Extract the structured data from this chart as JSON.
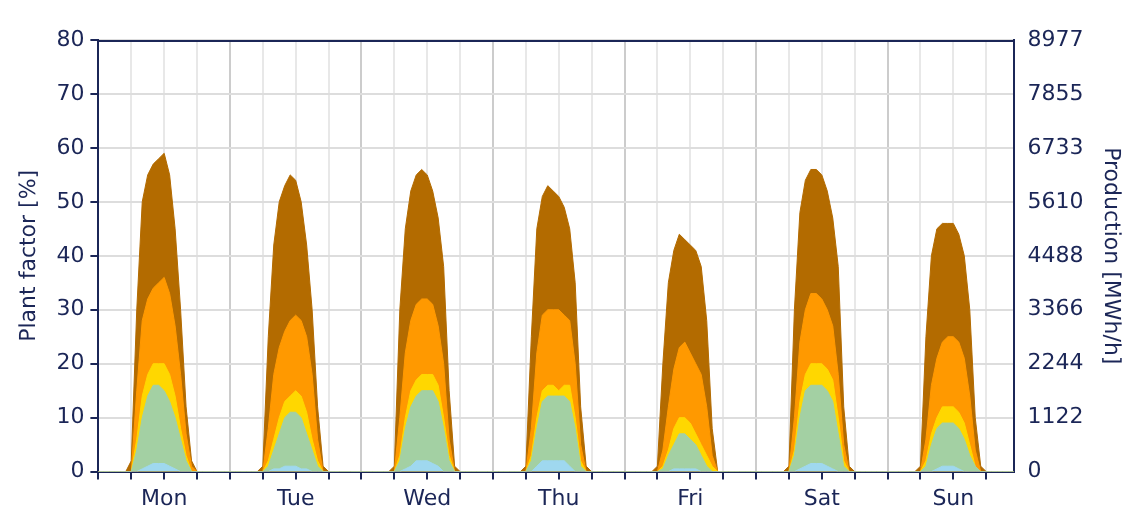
{
  "chart_data": {
    "type": "area",
    "ylabel": "Plant factor [%]",
    "y2label": "Production [MWh/h]",
    "categories": [
      null,
      null,
      null,
      null,
      null,
      null,
      null,
      null,
      null,
      null,
      null,
      null,
      "Mon",
      null,
      null,
      null,
      null,
      null,
      null,
      null,
      null,
      null,
      null,
      null,
      null,
      null,
      null,
      null,
      null,
      null,
      null,
      null,
      null,
      null,
      null,
      null,
      "Tue",
      null,
      null,
      null,
      null,
      null,
      null,
      null,
      null,
      null,
      null,
      null,
      null,
      null,
      null,
      null,
      null,
      null,
      null,
      null,
      null,
      null,
      null,
      null,
      "Wed",
      null,
      null,
      null,
      null,
      null,
      null,
      null,
      null,
      null,
      null,
      null,
      null,
      null,
      null,
      null,
      null,
      null,
      null,
      null,
      null,
      null,
      null,
      null,
      "Thu",
      null,
      null,
      null,
      null,
      null,
      null,
      null,
      null,
      null,
      null,
      null,
      null,
      null,
      null,
      null,
      null,
      null,
      null,
      null,
      null,
      null,
      null,
      null,
      "Fri",
      null,
      null,
      null,
      null,
      null,
      null,
      null,
      null,
      null,
      null,
      null,
      null,
      null,
      null,
      null,
      null,
      null,
      null,
      null,
      null,
      null,
      null,
      null,
      "Sat",
      null,
      null,
      null,
      null,
      null,
      null,
      null,
      null,
      null,
      null,
      null,
      null,
      null,
      null,
      null,
      null,
      null,
      null,
      null,
      null,
      null,
      null,
      null,
      "Sun",
      null,
      null,
      null,
      null,
      null,
      null,
      null,
      null,
      null,
      null,
      null
    ],
    "ylim": [
      0,
      80
    ],
    "yticks": [
      0,
      10,
      20,
      30,
      40,
      50,
      60,
      70,
      80
    ],
    "y2lim": [
      0,
      8977
    ],
    "y2ticks": [
      0,
      1122,
      2244,
      3366,
      4488,
      5610,
      6733,
      7855,
      8977
    ],
    "grid": true,
    "legend": false,
    "marker": "none",
    "series": [
      {
        "color": "#b36b00",
        "values": [
          0,
          0,
          0,
          0,
          0,
          0,
          2,
          30,
          50,
          55,
          57,
          58,
          59,
          55,
          45,
          30,
          12,
          2,
          0,
          0,
          0,
          0,
          0,
          0,
          0,
          0,
          0,
          0,
          0,
          0,
          1,
          25,
          42,
          50,
          53,
          55,
          54,
          50,
          42,
          30,
          12,
          1,
          0,
          0,
          0,
          0,
          0,
          0,
          0,
          0,
          0,
          0,
          0,
          0,
          1,
          30,
          45,
          52,
          55,
          56,
          55,
          52,
          47,
          38,
          15,
          1,
          0,
          0,
          0,
          0,
          0,
          0,
          0,
          0,
          0,
          0,
          0,
          0,
          1,
          25,
          45,
          51,
          53,
          52,
          51,
          49,
          45,
          35,
          12,
          1,
          0,
          0,
          0,
          0,
          0,
          0,
          0,
          0,
          0,
          0,
          0,
          0,
          1,
          20,
          35,
          41,
          44,
          43,
          42,
          41,
          38,
          28,
          8,
          0,
          0,
          0,
          0,
          0,
          0,
          0,
          0,
          0,
          0,
          0,
          0,
          0,
          1,
          30,
          48,
          54,
          56,
          56,
          55,
          52,
          47,
          38,
          12,
          1,
          0,
          0,
          0,
          0,
          0,
          0,
          0,
          0,
          0,
          0,
          0,
          0,
          1,
          25,
          40,
          45,
          46,
          46,
          46,
          44,
          40,
          30,
          10,
          1,
          0,
          0,
          0,
          0,
          0,
          0
        ]
      },
      {
        "color": "#ff9900",
        "values": [
          0,
          0,
          0,
          0,
          0,
          0,
          0,
          15,
          28,
          32,
          34,
          35,
          36,
          33,
          27,
          18,
          7,
          1,
          0,
          0,
          0,
          0,
          0,
          0,
          0,
          0,
          0,
          0,
          0,
          0,
          0,
          8,
          18,
          23,
          26,
          28,
          29,
          28,
          25,
          18,
          6,
          0,
          0,
          0,
          0,
          0,
          0,
          0,
          0,
          0,
          0,
          0,
          0,
          0,
          0,
          10,
          22,
          28,
          31,
          32,
          32,
          31,
          27,
          20,
          6,
          0,
          0,
          0,
          0,
          0,
          0,
          0,
          0,
          0,
          0,
          0,
          0,
          0,
          0,
          8,
          22,
          29,
          30,
          30,
          30,
          29,
          28,
          20,
          5,
          0,
          0,
          0,
          0,
          0,
          0,
          0,
          0,
          0,
          0,
          0,
          0,
          0,
          0,
          4,
          12,
          19,
          23,
          24,
          22,
          20,
          18,
          12,
          3,
          0,
          0,
          0,
          0,
          0,
          0,
          0,
          0,
          0,
          0,
          0,
          0,
          0,
          0,
          10,
          24,
          30,
          33,
          33,
          32,
          30,
          27,
          18,
          5,
          0,
          0,
          0,
          0,
          0,
          0,
          0,
          0,
          0,
          0,
          0,
          0,
          0,
          0,
          6,
          16,
          21,
          24,
          25,
          25,
          24,
          21,
          14,
          4,
          0,
          0,
          0,
          0,
          0,
          0,
          0
        ]
      },
      {
        "color": "#ffd700",
        "values": [
          0,
          0,
          0,
          0,
          0,
          0,
          0,
          6,
          14,
          18,
          20,
          20,
          20,
          18,
          14,
          8,
          3,
          0,
          0,
          0,
          0,
          0,
          0,
          0,
          0,
          0,
          0,
          0,
          0,
          0,
          0,
          2,
          6,
          10,
          13,
          14,
          15,
          14,
          11,
          6,
          2,
          0,
          0,
          0,
          0,
          0,
          0,
          0,
          0,
          0,
          0,
          0,
          0,
          0,
          0,
          3,
          10,
          15,
          17,
          18,
          18,
          18,
          16,
          10,
          3,
          0,
          0,
          0,
          0,
          0,
          0,
          0,
          0,
          0,
          0,
          0,
          0,
          0,
          0,
          3,
          10,
          15,
          16,
          16,
          15,
          16,
          16,
          10,
          2,
          0,
          0,
          0,
          0,
          0,
          0,
          0,
          0,
          0,
          0,
          0,
          0,
          0,
          0,
          1,
          4,
          8,
          10,
          10,
          9,
          7,
          5,
          3,
          1,
          0,
          0,
          0,
          0,
          0,
          0,
          0,
          0,
          0,
          0,
          0,
          0,
          0,
          0,
          4,
          13,
          18,
          20,
          20,
          20,
          19,
          17,
          10,
          2,
          0,
          0,
          0,
          0,
          0,
          0,
          0,
          0,
          0,
          0,
          0,
          0,
          0,
          0,
          2,
          7,
          10,
          12,
          12,
          12,
          11,
          9,
          5,
          1,
          0,
          0,
          0,
          0,
          0,
          0,
          0
        ]
      },
      {
        "color": "#a3d0a3",
        "values": [
          0,
          0,
          0,
          0,
          0,
          0,
          0,
          4,
          10,
          14,
          16,
          16,
          15,
          13,
          10,
          6,
          2,
          0,
          0,
          0,
          0,
          0,
          0,
          0,
          0,
          0,
          0,
          0,
          0,
          0,
          0,
          1,
          4,
          7,
          10,
          11,
          11,
          10,
          7,
          4,
          1,
          0,
          0,
          0,
          0,
          0,
          0,
          0,
          0,
          0,
          0,
          0,
          0,
          0,
          0,
          2,
          8,
          12,
          14,
          15,
          15,
          15,
          13,
          8,
          2,
          0,
          0,
          0,
          0,
          0,
          0,
          0,
          0,
          0,
          0,
          0,
          0,
          0,
          0,
          2,
          8,
          13,
          14,
          14,
          14,
          14,
          13,
          8,
          1,
          0,
          0,
          0,
          0,
          0,
          0,
          0,
          0,
          0,
          0,
          0,
          0,
          0,
          0,
          0.5,
          3,
          5,
          7,
          7,
          6,
          5,
          3,
          1,
          0,
          0,
          0,
          0,
          0,
          0,
          0,
          0,
          0,
          0,
          0,
          0,
          0,
          0,
          0,
          3,
          10,
          15,
          16,
          16,
          16,
          15,
          13,
          7,
          1,
          0,
          0,
          0,
          0,
          0,
          0,
          0,
          0,
          0,
          0,
          0,
          0,
          0,
          0,
          1,
          5,
          8,
          9,
          9,
          9,
          8,
          6,
          3,
          1,
          0,
          0,
          0,
          0,
          0,
          0,
          0
        ]
      },
      {
        "color": "#9fd8ef",
        "values": [
          0,
          0,
          0,
          0,
          0,
          0,
          0,
          0,
          0.5,
          1,
          1.5,
          1.5,
          1.5,
          1,
          0.5,
          0,
          0,
          0,
          0,
          0,
          0,
          0,
          0,
          0,
          0,
          0,
          0,
          0,
          0,
          0,
          0,
          0,
          0.5,
          0.5,
          1,
          1,
          1,
          0.5,
          0.5,
          0,
          0,
          0,
          0,
          0,
          0,
          0,
          0,
          0,
          0,
          0,
          0,
          0,
          0,
          0,
          0,
          0,
          0.5,
          1,
          2,
          2,
          2,
          1.5,
          1,
          0,
          0,
          0,
          0,
          0,
          0,
          0,
          0,
          0,
          0,
          0,
          0,
          0,
          0,
          0,
          0,
          0,
          1,
          2,
          2,
          2,
          2,
          2,
          1,
          0,
          0,
          0,
          0,
          0,
          0,
          0,
          0,
          0,
          0,
          0,
          0,
          0,
          0,
          0,
          0,
          0,
          0,
          0.5,
          0.5,
          0.5,
          0.5,
          0.5,
          0,
          0,
          0,
          0,
          0,
          0,
          0,
          0,
          0,
          0,
          0,
          0,
          0,
          0,
          0,
          0,
          0,
          0,
          0.5,
          1,
          1.5,
          1.5,
          1.5,
          1,
          0.5,
          0,
          0,
          0,
          0,
          0,
          0,
          0,
          0,
          0,
          0,
          0,
          0,
          0,
          0,
          0,
          0,
          0,
          0,
          0.5,
          1,
          1,
          1,
          0.5,
          0,
          0,
          0,
          0,
          0,
          0,
          0,
          0,
          0,
          0
        ]
      }
    ]
  }
}
